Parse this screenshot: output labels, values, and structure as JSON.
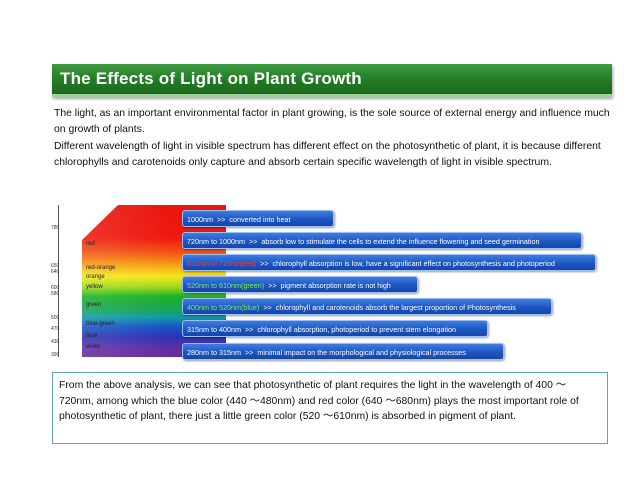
{
  "title": "The Effects of Light on Plant Growth",
  "paragraphs": [
    "The light, as an important environmental factor in plant growing, is the sole source of external energy and influence much on growth of plants.",
    "Different wavelength of light in visible spectrum has different effect on the photosynthetic of plant, it is because different chlorophylls and carotenoids only capture and absorb certain specific wavelength of light in visible spectrum."
  ],
  "spectrum": {
    "ticks": [
      "780",
      "650",
      "640",
      "600",
      "580",
      "500",
      "470",
      "430",
      "390"
    ],
    "colors": [
      "red",
      "red-orange",
      "orange",
      "yellow",
      "green",
      "blue-green",
      "blue",
      "violet"
    ]
  },
  "bands": [
    {
      "range": "1000nm",
      "arrow": ">>",
      "desc": "converted into heat"
    },
    {
      "range": "720nm to 1000nm",
      "arrow": ">>",
      "desc": "absorb low to stimulate the cells to extend the influence flowering and seed germination"
    },
    {
      "range": "610nm to 720nm(red)",
      "arrow": ">>",
      "desc": "chlorophyll absorption is low, have a significant effect on photosynthesis and photoperiod"
    },
    {
      "range": "520nm to 610nm(green)",
      "arrow": ">>",
      "desc": "pigment absorption rate is not high"
    },
    {
      "range": "400nm to 520nm(blue)",
      "arrow": ">>",
      "desc": "chlorophyll and carotenoids absorb the largest proportion of Photosynthesis"
    },
    {
      "range": "315nm to 400nm",
      "arrow": ">>",
      "desc": "chlorophyll absorption, photoperiod to prevent stem elongation"
    },
    {
      "range": "280nm to 315nm",
      "arrow": ">>",
      "desc": "minimal impact on the morphological and physiological processes"
    }
  ],
  "conclusion": "From the above analysis, we can see that photosynthetic of plant requires the light in the wavelength of 400 ～ 720nm, among which the blue color (440 ～480nm) and red color (640 ～680nm) plays the most important role of photosynthetic of plant, there just a little green color (520 ～610nm) is absorbed in pigment of plant."
}
